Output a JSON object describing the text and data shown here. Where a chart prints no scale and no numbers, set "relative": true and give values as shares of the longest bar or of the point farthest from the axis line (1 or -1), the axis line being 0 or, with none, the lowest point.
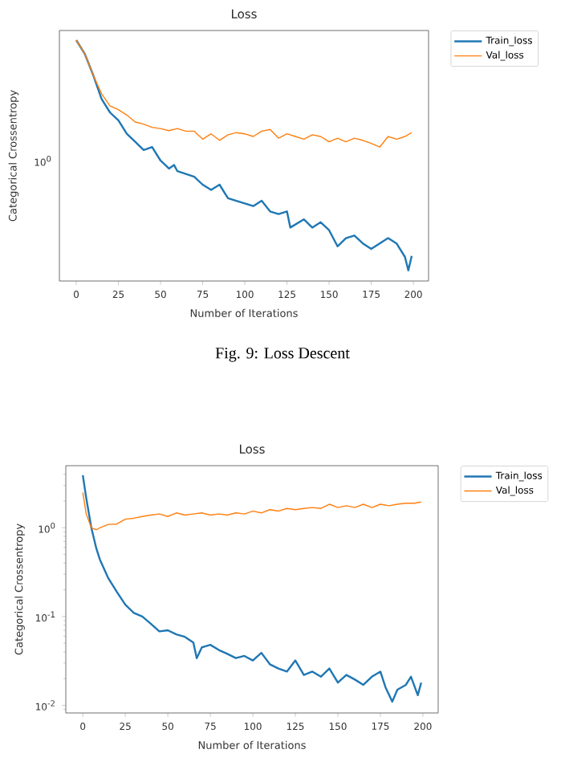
{
  "chart_data": [
    {
      "type": "line",
      "title": "Loss",
      "xlabel": "Number of Iterations",
      "ylabel": "Categorical Crossentropy",
      "relative": true,
      "legend": "top right",
      "annotations": [
        "10$^{0}$",
        "Fig. 9: Loss Descent"
      ],
      "xlim": [
        -10,
        209
      ],
      "xticks": [
        0,
        25,
        50,
        75,
        100,
        125,
        150,
        175,
        200
      ],
      "series": [
        {
          "name": "Train_loss",
          "color": "#1f77b4",
          "x": [
            0,
            5,
            10,
            15,
            20,
            25,
            30,
            35,
            40,
            45,
            50,
            55,
            58,
            60,
            70,
            75,
            80,
            85,
            90,
            100,
            105,
            110,
            115,
            120,
            125,
            127,
            135,
            140,
            145,
            150,
            155,
            160,
            165,
            170,
            175,
            180,
            185,
            190,
            195,
            197,
            199
          ],
          "values": [
            1.0,
            0.944,
            0.856,
            0.756,
            0.7,
            0.667,
            0.611,
            0.578,
            0.544,
            0.556,
            0.5,
            0.467,
            0.482,
            0.456,
            0.433,
            0.4,
            0.378,
            0.4,
            0.344,
            0.322,
            0.311,
            0.333,
            0.289,
            0.278,
            0.289,
            0.222,
            0.256,
            0.222,
            0.244,
            0.211,
            0.144,
            0.178,
            0.189,
            0.156,
            0.133,
            0.156,
            0.178,
            0.156,
            0.1,
            0.044,
            0.104
          ]
        },
        {
          "name": "Val_loss",
          "color": "#ff7f0e",
          "x": [
            0,
            5,
            10,
            15,
            20,
            25,
            30,
            35,
            40,
            45,
            50,
            55,
            60,
            65,
            70,
            75,
            80,
            85,
            90,
            95,
            100,
            105,
            110,
            115,
            120,
            125,
            130,
            135,
            140,
            145,
            150,
            155,
            160,
            165,
            170,
            175,
            180,
            185,
            190,
            195,
            199
          ],
          "values": [
            1.0,
            0.944,
            0.856,
            0.778,
            0.727,
            0.711,
            0.689,
            0.66,
            0.651,
            0.638,
            0.633,
            0.624,
            0.633,
            0.622,
            0.622,
            0.589,
            0.611,
            0.584,
            0.607,
            0.616,
            0.611,
            0.6,
            0.622,
            0.629,
            0.593,
            0.611,
            0.6,
            0.589,
            0.607,
            0.6,
            0.578,
            0.593,
            0.578,
            0.593,
            0.584,
            0.571,
            0.556,
            0.6,
            0.589,
            0.6,
            0.616
          ]
        }
      ]
    },
    {
      "type": "line",
      "title": "Loss",
      "xlabel": "Number of Iterations",
      "ylabel": "Categorical Crossentropy",
      "log": true,
      "legend": "top right",
      "xlim": [
        -10,
        209
      ],
      "xticks": [
        0,
        25,
        50,
        75,
        100,
        125,
        150,
        175,
        200
      ],
      "ylim": [
        0.0082,
        5.0
      ],
      "yticks": [
        {
          "value": 0.009,
          "label": null
        },
        {
          "value": 0.01,
          "label": "10$^{-2}$"
        },
        {
          "value": 0.02,
          "label": null
        },
        {
          "value": 0.03,
          "label": null
        },
        {
          "value": 0.04,
          "label": null
        },
        {
          "value": 0.05,
          "label": null
        },
        {
          "value": 0.06,
          "label": null
        },
        {
          "value": 0.07,
          "label": null
        },
        {
          "value": 0.08,
          "label": null
        },
        {
          "value": 0.09,
          "label": null
        },
        {
          "value": 0.1,
          "label": "10$^{-1}$"
        },
        {
          "value": 0.2,
          "label": null
        },
        {
          "value": 0.3,
          "label": null
        },
        {
          "value": 0.4,
          "label": null
        },
        {
          "value": 0.5,
          "label": null
        },
        {
          "value": 0.6,
          "label": null
        },
        {
          "value": 0.7,
          "label": null
        },
        {
          "value": 0.8,
          "label": null
        },
        {
          "value": 0.9,
          "label": null
        },
        {
          "value": 1,
          "label": "10$^{0}$"
        },
        {
          "value": 2,
          "label": null
        },
        {
          "value": 3,
          "label": null
        },
        {
          "value": 4,
          "label": null
        }
      ],
      "series": [
        {
          "name": "Train_loss",
          "color": "#1f77b4",
          "x": [
            0,
            2,
            5,
            8,
            10,
            15,
            20,
            25,
            30,
            35,
            40,
            45,
            50,
            55,
            60,
            65,
            67,
            70,
            75,
            80,
            85,
            90,
            95,
            100,
            105,
            110,
            115,
            120,
            125,
            130,
            135,
            140,
            145,
            150,
            155,
            160,
            165,
            170,
            175,
            178,
            182,
            185,
            190,
            193,
            197,
            199
          ],
          "values": [
            3.9,
            2.17,
            1.0,
            0.58,
            0.44,
            0.27,
            0.19,
            0.136,
            0.11,
            0.1,
            0.083,
            0.068,
            0.07,
            0.063,
            0.059,
            0.051,
            0.034,
            0.045,
            0.048,
            0.042,
            0.038,
            0.034,
            0.036,
            0.032,
            0.039,
            0.029,
            0.026,
            0.024,
            0.032,
            0.022,
            0.024,
            0.021,
            0.026,
            0.018,
            0.022,
            0.0195,
            0.017,
            0.021,
            0.024,
            0.016,
            0.011,
            0.015,
            0.017,
            0.021,
            0.013,
            0.018
          ]
        },
        {
          "name": "Val_loss",
          "color": "#ff7f0e",
          "x": [
            0,
            2,
            5,
            8,
            10,
            15,
            20,
            25,
            30,
            35,
            40,
            45,
            50,
            55,
            60,
            65,
            70,
            75,
            80,
            85,
            90,
            95,
            100,
            105,
            110,
            115,
            120,
            125,
            130,
            135,
            140,
            145,
            150,
            155,
            160,
            165,
            170,
            175,
            180,
            185,
            190,
            195,
            199
          ],
          "values": [
            2.5,
            1.43,
            1.0,
            0.95,
            1.0,
            1.09,
            1.1,
            1.25,
            1.28,
            1.34,
            1.39,
            1.43,
            1.34,
            1.47,
            1.39,
            1.43,
            1.47,
            1.39,
            1.43,
            1.39,
            1.47,
            1.43,
            1.54,
            1.47,
            1.6,
            1.54,
            1.65,
            1.6,
            1.65,
            1.69,
            1.65,
            1.84,
            1.69,
            1.77,
            1.69,
            1.84,
            1.69,
            1.84,
            1.77,
            1.84,
            1.89,
            1.89,
            1.95
          ]
        }
      ]
    }
  ]
}
